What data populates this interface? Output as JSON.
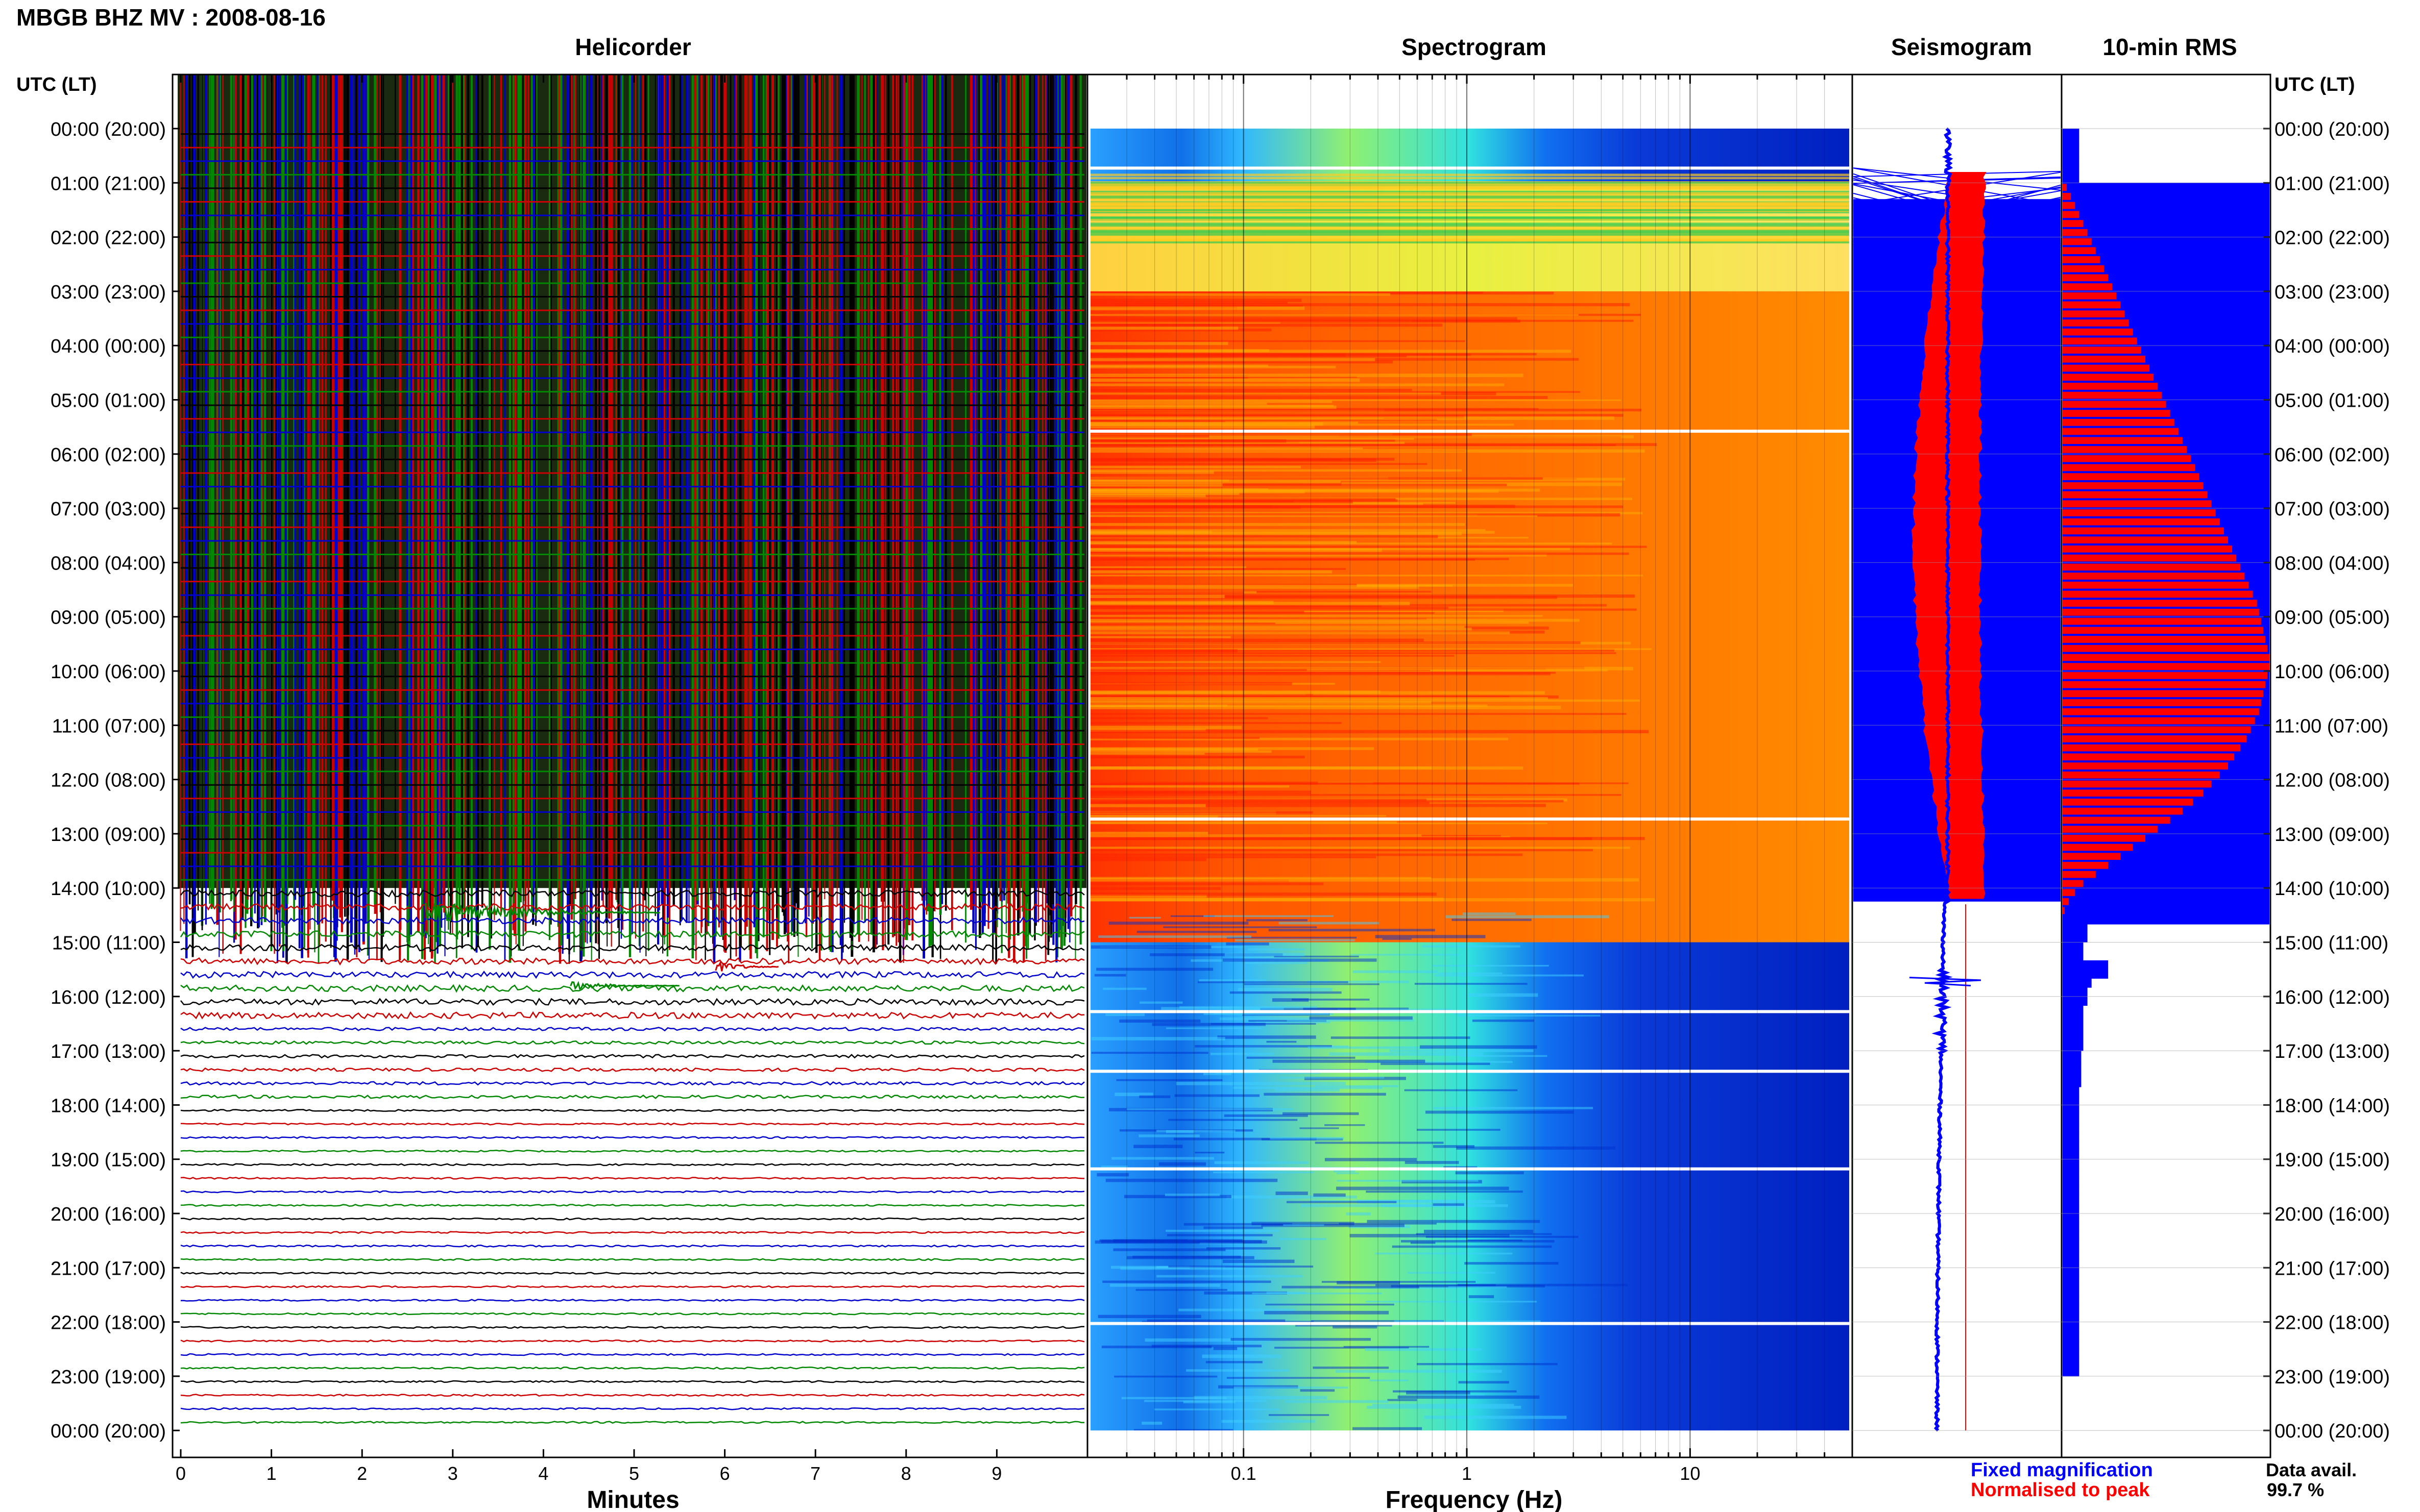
{
  "chart_data": {
    "type": "heatmap",
    "title": "MBGB BHZ MV : 2008-08-16",
    "panels": {
      "helicorder": {
        "title": "Helicorder",
        "xlabel": "Minutes",
        "xlim": [
          0,
          10
        ],
        "xticks": [
          "0",
          "1",
          "2",
          "3",
          "4",
          "5",
          "6",
          "7",
          "8",
          "9"
        ],
        "trace_colors": [
          "#000000",
          "#cc0000",
          "#0000cc",
          "#008800"
        ]
      },
      "spectrogram": {
        "title": "Spectrogram",
        "xlabel": "Frequency (Hz)",
        "xscale": "log",
        "xlim": [
          0.02,
          50
        ],
        "xticks": [
          "0.1",
          "1",
          "10"
        ]
      },
      "seismogram": {
        "title": "Seismogram"
      },
      "rms": {
        "title": "10-min RMS"
      }
    },
    "y_axis": {
      "label": "UTC (LT)",
      "hours_utc": [
        0,
        1,
        2,
        3,
        4,
        5,
        6,
        7,
        8,
        9,
        10,
        11,
        12,
        13,
        14,
        15,
        16,
        17,
        18,
        19,
        20,
        21,
        22,
        23,
        24
      ],
      "tick_labels": [
        "00:00 (20:00)",
        "01:00 (21:00)",
        "02:00 (22:00)",
        "03:00 (23:00)",
        "04:00 (00:00)",
        "05:00 (01:00)",
        "06:00 (02:00)",
        "07:00 (03:00)",
        "08:00 (04:00)",
        "09:00 (05:00)",
        "10:00 (06:00)",
        "11:00 (07:00)",
        "12:00 (08:00)",
        "13:00 (09:00)",
        "14:00 (10:00)",
        "15:00 (11:00)",
        "16:00 (12:00)",
        "17:00 (13:00)",
        "18:00 (14:00)",
        "19:00 (15:00)",
        "20:00 (16:00)",
        "21:00 (17:00)",
        "22:00 (18:00)",
        "23:00 (19:00)",
        "00:00 (20:00)"
      ]
    },
    "rms_fixed": [
      0.08,
      0.08,
      0.08,
      0.08,
      0.08,
      0.08,
      1.0,
      1.0,
      1.0,
      1.0,
      1.0,
      1.0,
      1.0,
      1.0,
      1.0,
      1.0,
      1.0,
      1.0,
      1.0,
      1.0,
      1.0,
      1.0,
      1.0,
      1.0,
      1.0,
      1.0,
      1.0,
      1.0,
      1.0,
      1.0,
      1.0,
      1.0,
      1.0,
      1.0,
      1.0,
      1.0,
      1.0,
      1.0,
      1.0,
      1.0,
      1.0,
      1.0,
      1.0,
      1.0,
      1.0,
      1.0,
      1.0,
      1.0,
      1.0,
      1.0,
      1.0,
      1.0,
      1.0,
      1.0,
      1.0,
      1.0,
      1.0,
      1.0,
      1.0,
      1.0,
      1.0,
      1.0,
      1.0,
      1.0,
      1.0,
      1.0,
      1.0,
      1.0,
      1.0,
      1.0,
      1.0,
      1.0,
      1.0,
      1.0,
      1.0,
      1.0,
      1.0,
      1.0,
      1.0,
      1.0,
      1.0,
      1.0,
      1.0,
      1.0,
      1.0,
      1.0,
      1.0,
      1.0,
      0.12,
      0.12,
      0.1,
      0.1,
      0.22,
      0.22,
      0.14,
      0.12,
      0.12,
      0.1,
      0.1,
      0.1,
      0.1,
      0.1,
      0.09,
      0.09,
      0.09,
      0.09,
      0.08,
      0.08,
      0.08,
      0.08,
      0.08,
      0.08,
      0.08,
      0.08,
      0.08,
      0.08,
      0.08,
      0.08,
      0.08,
      0.08,
      0.08,
      0.08,
      0.08,
      0.08,
      0.08,
      0.08,
      0.08,
      0.08,
      0.08,
      0.08,
      0.08,
      0.08,
      0.08,
      0.08,
      0.08,
      0.08,
      0.08,
      0.08
    ],
    "rms_normalised": [
      0.0,
      0.0,
      0.0,
      0.0,
      0.0,
      0.0,
      0.02,
      0.04,
      0.06,
      0.08,
      0.1,
      0.12,
      0.14,
      0.16,
      0.18,
      0.2,
      0.22,
      0.24,
      0.26,
      0.28,
      0.3,
      0.32,
      0.34,
      0.36,
      0.38,
      0.4,
      0.42,
      0.44,
      0.46,
      0.48,
      0.5,
      0.52,
      0.54,
      0.56,
      0.58,
      0.6,
      0.62,
      0.64,
      0.66,
      0.68,
      0.7,
      0.72,
      0.74,
      0.76,
      0.78,
      0.8,
      0.82,
      0.84,
      0.86,
      0.88,
      0.9,
      0.92,
      0.94,
      0.95,
      0.96,
      0.97,
      0.98,
      0.99,
      1.0,
      1.0,
      0.99,
      0.98,
      0.97,
      0.96,
      0.95,
      0.93,
      0.91,
      0.89,
      0.86,
      0.83,
      0.8,
      0.76,
      0.72,
      0.68,
      0.63,
      0.58,
      0.52,
      0.46,
      0.4,
      0.34,
      0.28,
      0.22,
      0.16,
      0.1,
      0.06,
      0.03,
      0.01,
      0.0,
      0.0,
      0.0,
      0.0,
      0.0,
      0.0,
      0.0,
      0.0,
      0.0,
      0.0,
      0.0,
      0.0,
      0.0,
      0.0,
      0.0,
      0.0,
      0.0,
      0.0,
      0.0,
      0.0,
      0.0,
      0.0,
      0.0,
      0.0,
      0.0,
      0.0,
      0.0,
      0.0,
      0.0,
      0.0,
      0.0,
      0.0,
      0.0,
      0.0,
      0.0,
      0.0,
      0.0,
      0.0,
      0.0,
      0.0,
      0.0,
      0.0,
      0.0,
      0.0,
      0.0,
      0.0,
      0.0,
      0.0,
      0.0,
      0.0,
      0.0,
      0.0,
      0.0,
      0.0,
      0.0,
      0.0,
      0.0
    ],
    "spectrogram_state_by_hour": [
      "quiet",
      "mixed",
      "mixed",
      "high",
      "high",
      "high",
      "high",
      "high",
      "high",
      "high",
      "high",
      "high",
      "high",
      "high",
      "high",
      "quiet",
      "quiet",
      "quiet",
      "quiet",
      "quiet",
      "quiet",
      "quiet",
      "quiet",
      "quiet"
    ],
    "data_gaps_utc": [
      0.7,
      5.55,
      12.7,
      16.25,
      17.35,
      19.15,
      22.0
    ],
    "colors": {
      "fixed": "#0000ff",
      "normalised": "#ff0000"
    }
  },
  "legend": {
    "fixed_label": "Fixed magnification",
    "normalised_label": "Normalised to peak",
    "avail_label": "Data avail.",
    "avail_value": "99.7 %"
  }
}
